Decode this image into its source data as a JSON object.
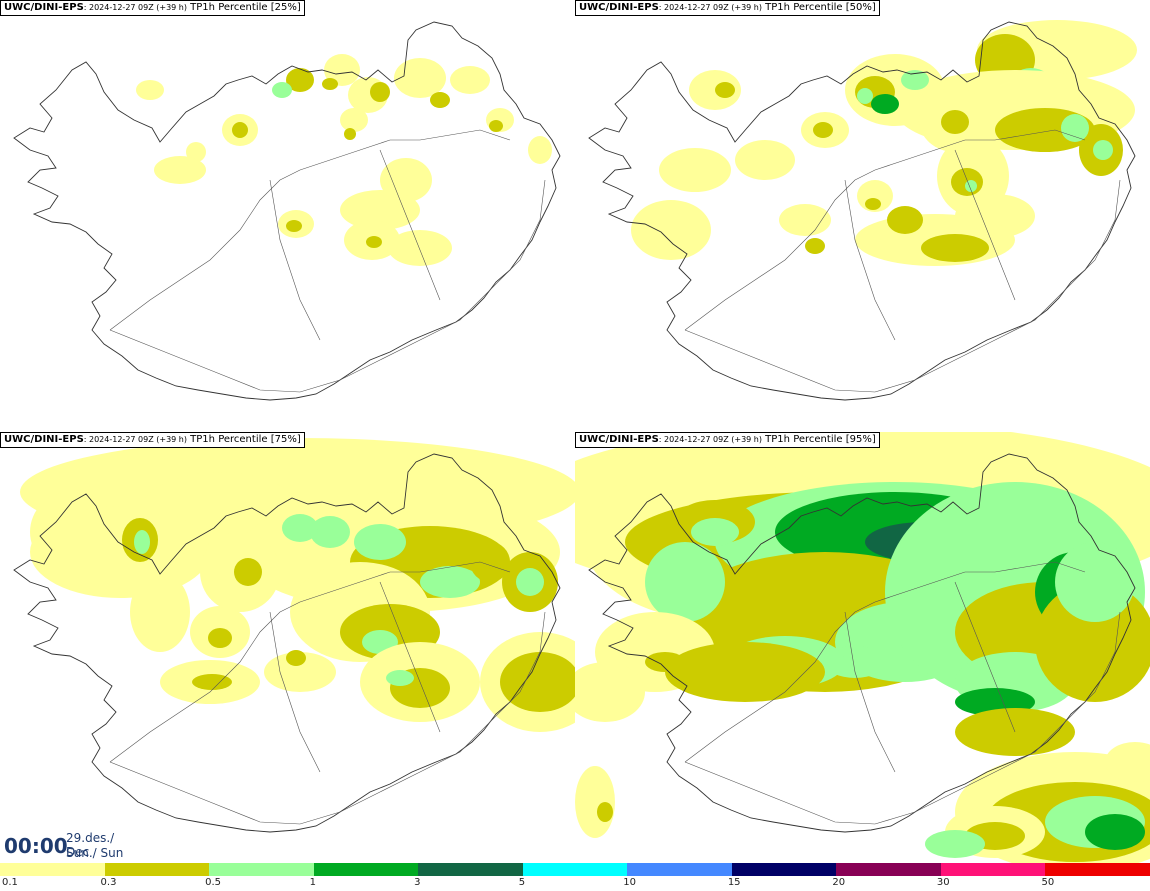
{
  "panels": [
    {
      "model": "UWC/DINI-EPS",
      "run": ": 2024-12-27 09Z (+39 h)",
      "field": "TP1h Percentile [25%]",
      "percentile": 25
    },
    {
      "model": "UWC/DINI-EPS",
      "run": ": 2024-12-27 09Z (+39 h)",
      "field": "TP1h Percentile [50%]",
      "percentile": 50
    },
    {
      "model": "UWC/DINI-EPS",
      "run": ": 2024-12-27 09Z (+39 h)",
      "field": "TP1h Percentile [75%]",
      "percentile": 75
    },
    {
      "model": "UWC/DINI-EPS",
      "run": ": 2024-12-27 09Z (+39 h)",
      "field": "TP1h Percentile [95%]",
      "percentile": 95
    }
  ],
  "valid_time": {
    "clock": "00:00",
    "date_line1": "29.des./ Dec",
    "date_line2": "Sun./ Sun"
  },
  "legend": {
    "levels": [
      "0.1",
      "0.3",
      "0.5",
      "1",
      "3",
      "5",
      "10",
      "15",
      "20",
      "30",
      "50"
    ],
    "colors": [
      "#ffff99",
      "#cccc00",
      "#99ff99",
      "#00aa22",
      "#116644",
      "#00ffff",
      "#4488ff",
      "#000066",
      "#880055",
      "#ff1177",
      "#ee0000"
    ]
  }
}
